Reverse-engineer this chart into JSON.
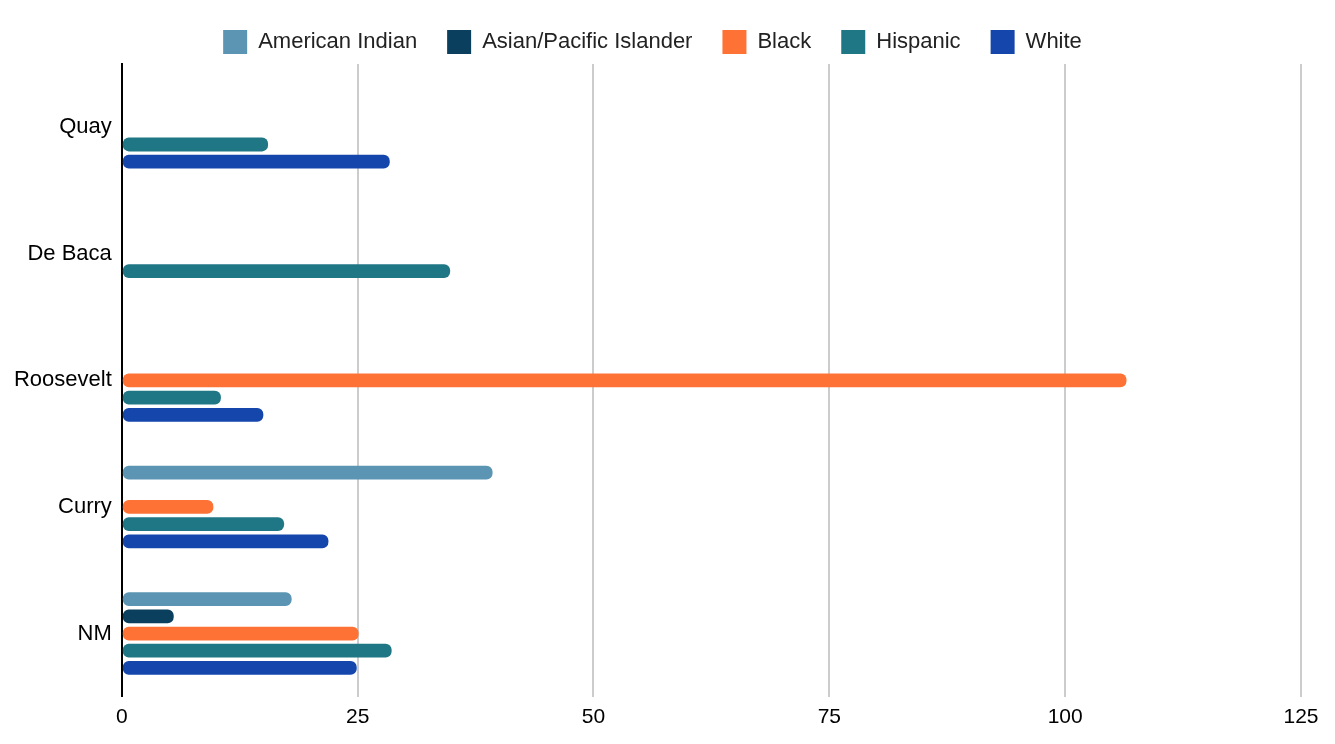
{
  "chart_data": {
    "type": "bar",
    "orientation": "horizontal",
    "categories": [
      "Quay",
      "De Baca",
      "Roosevelt",
      "Curry",
      "NM"
    ],
    "series": [
      {
        "name": "American Indian",
        "color": "#5b95b3",
        "values": [
          null,
          null,
          null,
          39.3,
          18.0
        ]
      },
      {
        "name": "Asian/Pacific Islander",
        "color": "#0b3f5e",
        "values": [
          null,
          null,
          null,
          null,
          5.5
        ]
      },
      {
        "name": "Black",
        "color": "#ff7235",
        "values": [
          null,
          null,
          106.5,
          9.7,
          25.1
        ]
      },
      {
        "name": "Hispanic",
        "color": "#1f7785",
        "values": [
          15.5,
          34.8,
          10.5,
          17.2,
          28.6
        ]
      },
      {
        "name": "White",
        "color": "#1446ac",
        "values": [
          28.4,
          null,
          15.0,
          21.9,
          24.9
        ]
      }
    ],
    "xlim": [
      0,
      125
    ],
    "xticks": [
      0,
      25,
      50,
      75,
      100,
      125
    ],
    "grid": "x",
    "legend": "top"
  }
}
